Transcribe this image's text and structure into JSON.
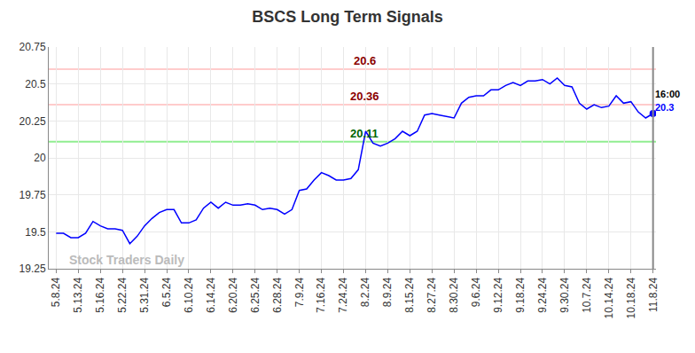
{
  "chart_data": {
    "type": "line",
    "title": "BSCS Long Term Signals",
    "categories": [
      "5.8.24",
      null,
      null,
      "5.13.24",
      null,
      null,
      "5.16.24",
      null,
      null,
      "5.22.24",
      null,
      null,
      "5.31.24",
      null,
      null,
      "6.5.24",
      null,
      null,
      "6.10.24",
      null,
      null,
      "6.14.24",
      null,
      null,
      "6.20.24",
      null,
      null,
      "6.25.24",
      null,
      null,
      "6.28.24",
      null,
      null,
      "7.9.24",
      null,
      null,
      "7.16.24",
      null,
      null,
      "7.24.24",
      null,
      null,
      "8.2.24",
      null,
      null,
      "8.9.24",
      null,
      null,
      "8.15.24",
      null,
      null,
      "8.27.24",
      null,
      null,
      "8.30.24",
      null,
      null,
      "9.6.24",
      null,
      null,
      "9.12.24",
      null,
      null,
      "9.18.24",
      null,
      null,
      "9.24.24",
      null,
      null,
      "9.30.24",
      null,
      null,
      "10.7.24",
      null,
      null,
      "10.14.24",
      null,
      null,
      "10.18.24",
      null,
      null,
      "11.8.24"
    ],
    "values": [
      19.49,
      19.49,
      19.46,
      19.46,
      19.49,
      19.57,
      19.54,
      19.52,
      19.52,
      19.51,
      19.42,
      19.47,
      19.54,
      19.59,
      19.63,
      19.65,
      19.65,
      19.56,
      19.56,
      19.58,
      19.66,
      19.7,
      19.66,
      19.7,
      19.68,
      19.68,
      19.69,
      19.68,
      19.65,
      19.66,
      19.65,
      19.62,
      19.65,
      19.78,
      19.79,
      19.85,
      19.9,
      19.88,
      19.85,
      19.85,
      19.86,
      19.92,
      20.18,
      20.1,
      20.08,
      20.1,
      20.13,
      20.18,
      20.15,
      20.18,
      20.29,
      20.3,
      20.29,
      20.28,
      20.27,
      20.37,
      20.41,
      20.42,
      20.42,
      20.46,
      20.46,
      20.49,
      20.51,
      20.49,
      20.52,
      20.52,
      20.53,
      20.5,
      20.54,
      20.49,
      20.48,
      20.37,
      20.33,
      20.36,
      20.34,
      20.35,
      20.42,
      20.37,
      20.38,
      20.31,
      20.27,
      20.3
    ],
    "color": "#0000ff",
    "ylim": [
      19.25,
      20.75
    ],
    "yticks": [
      19.25,
      19.5,
      19.75,
      20,
      20.25,
      20.5,
      20.75
    ],
    "grid": true,
    "levels": [
      {
        "value": 20.6,
        "label": "20.6",
        "color": "#ffcccc",
        "label_color": "#8b0000"
      },
      {
        "value": 20.36,
        "label": "20.36",
        "color": "#ffcccc",
        "label_color": "#8b0000"
      },
      {
        "value": 20.11,
        "label": "20.11",
        "color": "#90ee90",
        "label_color": "#006400"
      }
    ],
    "last_time": "16:00",
    "last_label": "20.3",
    "watermark": "Stock Traders Daily"
  }
}
